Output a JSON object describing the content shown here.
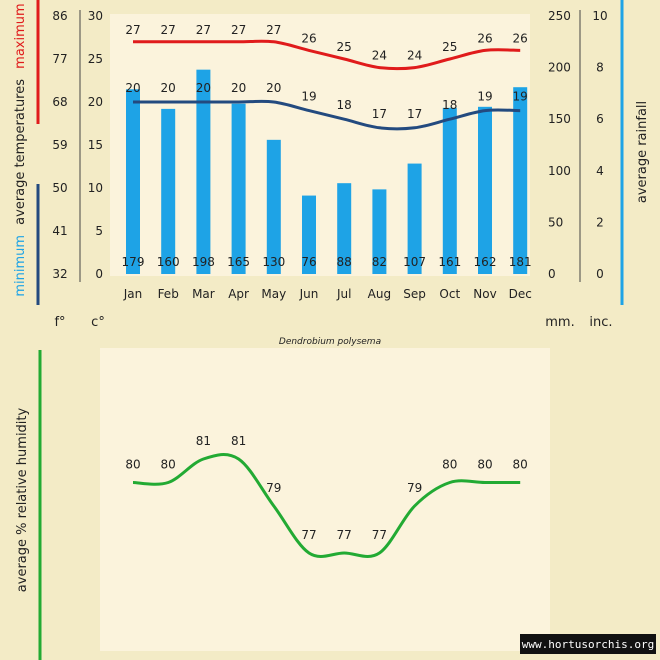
{
  "colors": {
    "background": "#f3ebc6",
    "panel": "#fbf3dc",
    "bar": "#1ea3e6",
    "max_line": "#e01b1b",
    "min_line": "#234a7f",
    "humidity_line": "#22aa33",
    "rain_axis": "#1ea3e6"
  },
  "chart_data": [
    {
      "type": "bar+line",
      "species": "Dendrobium polysema",
      "categories": [
        "Jan",
        "Feb",
        "Mar",
        "Apr",
        "May",
        "Jun",
        "Jul",
        "Aug",
        "Sep",
        "Oct",
        "Nov",
        "Dec"
      ],
      "temp_axis": {
        "celsius_ticks": [
          "30",
          "25",
          "20",
          "15",
          "10",
          "5",
          "0"
        ],
        "fahrenheit_ticks": [
          "86",
          "77",
          "68",
          "59",
          "50",
          "41",
          "32"
        ],
        "ylim_c": [
          0,
          30
        ],
        "title_minimum": "minimum",
        "title_mid": "average  temperatures",
        "title_maximum": "maximum",
        "unit_f": "f°",
        "unit_c": "c°"
      },
      "rain_axis": {
        "mm_ticks": [
          "250",
          "200",
          "150",
          "100",
          "50",
          "0"
        ],
        "inch_ticks": [
          "10",
          "8",
          "6",
          "4",
          "2",
          "0"
        ],
        "ylim_mm": [
          0,
          250
        ],
        "title": "average rainfall",
        "unit_mm": "mm.",
        "unit_in": "inc."
      },
      "series": [
        {
          "name": "maximum",
          "kind": "line",
          "values": [
            27,
            27,
            27,
            27,
            27,
            26,
            25,
            24,
            24,
            25,
            26,
            26
          ]
        },
        {
          "name": "minimum",
          "kind": "line",
          "values": [
            20,
            20,
            20,
            20,
            20,
            19,
            18,
            17,
            17,
            18,
            19,
            19
          ]
        },
        {
          "name": "average rainfall",
          "kind": "bar",
          "values": [
            179,
            160,
            198,
            165,
            130,
            76,
            88,
            82,
            107,
            161,
            162,
            181
          ]
        }
      ]
    },
    {
      "type": "line",
      "categories": [
        "Jan",
        "Feb",
        "Mar",
        "Apr",
        "May",
        "Jun",
        "Jul",
        "Aug",
        "Sep",
        "Oct",
        "Nov",
        "Dec"
      ],
      "series": [
        {
          "name": "average % relative humidity",
          "values": [
            80,
            80,
            81,
            81,
            79,
            77,
            77,
            77,
            79,
            80,
            80,
            80
          ]
        }
      ],
      "ylabel": "average %  relative humidity",
      "ylim": [
        74,
        83
      ]
    }
  ],
  "watermark": "www.hortusorchis.org"
}
